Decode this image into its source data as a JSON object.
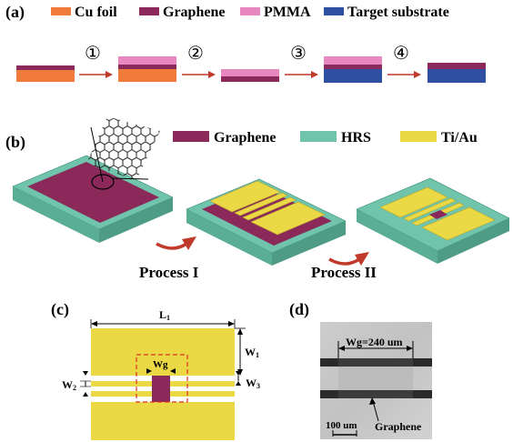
{
  "panels": {
    "a": "(a)",
    "b": "(b)",
    "c": "(c)",
    "d": "(d)"
  },
  "colors": {
    "cu": "#f07b3a",
    "graphene": "#8b2a5a",
    "pmma": "#e888c0",
    "substrate": "#2f4fa3",
    "hrs": "#6fc4ab",
    "tiau": "#ead845",
    "arrow": "#c0392b"
  },
  "legend_a": {
    "cu": "Cu foil",
    "graphene": "Graphene",
    "pmma": "PMMA",
    "substrate": "Target substrate"
  },
  "steps": [
    "①",
    "②",
    "③",
    "④"
  ],
  "legend_b": {
    "graphene": "Graphene",
    "hrs": "HRS",
    "tiau": "Ti/Au"
  },
  "process": {
    "one": "Process I",
    "two": "Process II"
  },
  "dims_c": {
    "l1": "L",
    "l1_sub": "1",
    "w1": "W",
    "w1_sub": "1",
    "w2": "W",
    "w2_sub": "2",
    "w3": "W",
    "w3_sub": "3",
    "wg": "Wg"
  },
  "micrograph": {
    "wg_label": "Wg=240 um",
    "scale": "100 um",
    "graphene": "Graphene"
  }
}
